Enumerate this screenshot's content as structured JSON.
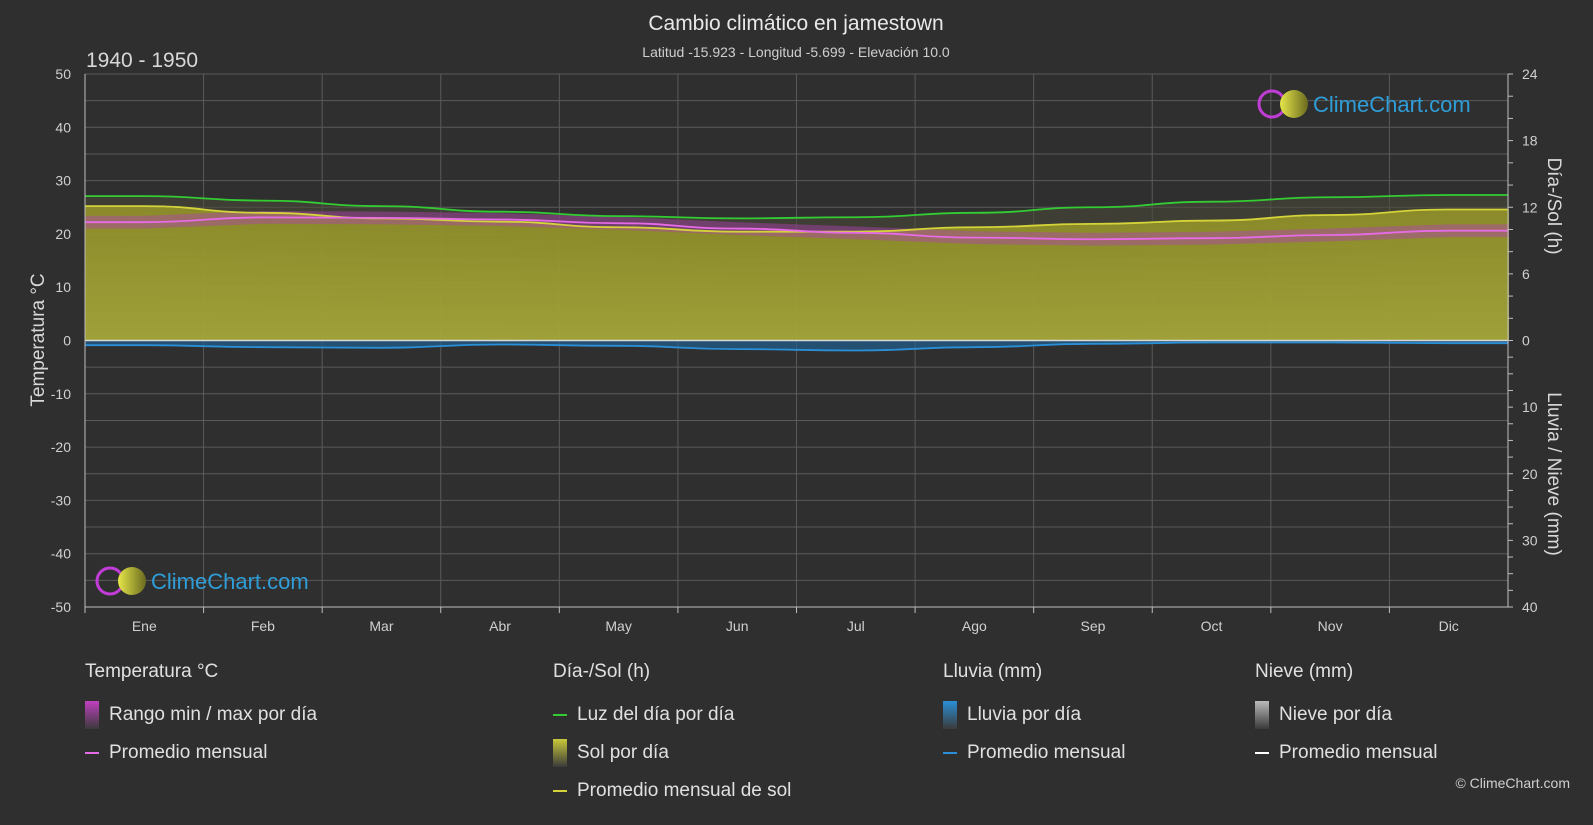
{
  "header": {
    "title": "Cambio climático en jamestown",
    "subtitle": "Latitud -15.923 - Longitud -5.699 - Elevación 10.0",
    "period": "1940 - 1950"
  },
  "brand": {
    "logo_text": "ClimeChart.com",
    "copyright": "© ClimeChart.com"
  },
  "chart_data": {
    "type": "line",
    "categories": [
      "Ene",
      "Feb",
      "Mar",
      "Abr",
      "May",
      "Jun",
      "Jul",
      "Ago",
      "Sep",
      "Oct",
      "Nov",
      "Dic"
    ],
    "axes": {
      "left": {
        "label": "Temperatura °C",
        "range": [
          -50,
          50
        ],
        "ticks": [
          50,
          40,
          30,
          20,
          10,
          0,
          -10,
          -20,
          -30,
          -40,
          -50
        ]
      },
      "right_top": {
        "label": "Día-/Sol (h)",
        "range": [
          0,
          24
        ],
        "ticks": [
          24,
          18,
          12,
          6,
          0
        ]
      },
      "right_bottom": {
        "label": "Lluvia / Nieve (mm)",
        "range": [
          0,
          40
        ],
        "ticks": [
          10,
          20,
          30,
          40
        ]
      }
    },
    "grid": true,
    "series": [
      {
        "name": "Luz del día por día",
        "unit": "h",
        "color": "#33cc33",
        "values": [
          13.0,
          12.6,
          12.1,
          11.6,
          11.2,
          11.0,
          11.1,
          11.5,
          12.0,
          12.5,
          12.9,
          13.1
        ]
      },
      {
        "name": "Promedio mensual de sol",
        "unit": "h",
        "color": "#d4d43a",
        "values": [
          12.1,
          11.5,
          11.0,
          10.7,
          10.2,
          9.8,
          9.8,
          10.2,
          10.5,
          10.8,
          11.3,
          11.8
        ]
      },
      {
        "name": "Promedio mensual",
        "group": "Temperatura °C",
        "unit": "°C",
        "color": "#e66be6",
        "values": [
          22.2,
          23.1,
          23.0,
          22.7,
          22.0,
          21.0,
          20.2,
          19.3,
          19.0,
          19.2,
          19.8,
          20.6
        ]
      },
      {
        "name": "Promedio mensual",
        "group": "Lluvia (mm)",
        "unit": "mm",
        "color": "#2a8fd6",
        "values": [
          0.7,
          1.0,
          1.1,
          0.6,
          0.8,
          1.3,
          1.5,
          1.0,
          0.5,
          0.3,
          0.3,
          0.4
        ]
      }
    ]
  },
  "legend": {
    "groups": [
      {
        "title": "Temperatura °C",
        "items": [
          {
            "label": "Rango min / max por día",
            "kind": "bar",
            "color": "#c040c0"
          },
          {
            "label": "Promedio mensual",
            "kind": "line",
            "color": "#e66be6"
          }
        ]
      },
      {
        "title": "Día-/Sol (h)",
        "items": [
          {
            "label": "Luz del día por día",
            "kind": "line",
            "color": "#33cc33"
          },
          {
            "label": "Sol por día",
            "kind": "bar",
            "color": "#c8c83a"
          },
          {
            "label": "Promedio mensual de sol",
            "kind": "line",
            "color": "#d4d43a"
          }
        ]
      },
      {
        "title": "Lluvia (mm)",
        "items": [
          {
            "label": "Lluvia por día",
            "kind": "bar",
            "color": "#2a8fd6"
          },
          {
            "label": "Promedio mensual",
            "kind": "line",
            "color": "#2a8fd6"
          }
        ]
      },
      {
        "title": "Nieve (mm)",
        "items": [
          {
            "label": "Nieve por día",
            "kind": "bar",
            "color": "#bbbbbb"
          },
          {
            "label": "Promedio mensual",
            "kind": "line",
            "color": "#ffffff"
          }
        ]
      }
    ]
  }
}
